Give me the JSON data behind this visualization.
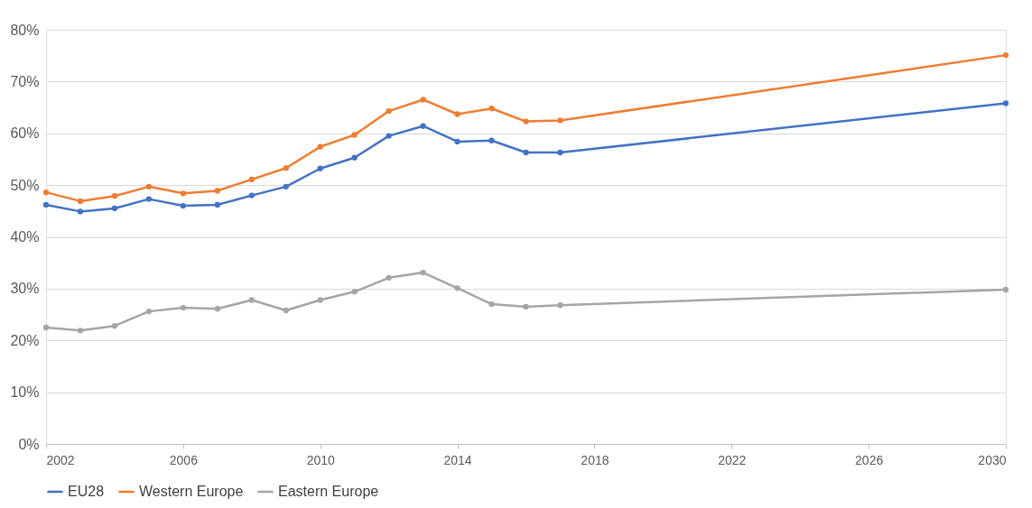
{
  "chart_data": {
    "type": "line",
    "x": [
      2002,
      2003,
      2004,
      2005,
      2006,
      2007,
      2008,
      2009,
      2010,
      2011,
      2012,
      2013,
      2014,
      2015,
      2016,
      2017,
      2030
    ],
    "series": [
      {
        "name": "EU28",
        "color": "#4472c4",
        "values": [
          46.2,
          44.9,
          45.5,
          47.3,
          46.0,
          46.2,
          48.0,
          49.7,
          53.2,
          55.3,
          59.5,
          61.4,
          58.4,
          58.6,
          56.3,
          56.3,
          65.8
        ]
      },
      {
        "name": "Western Europe",
        "color": "#ed7d31",
        "values": [
          48.6,
          46.9,
          47.9,
          49.7,
          48.4,
          48.9,
          51.1,
          53.3,
          57.4,
          59.7,
          64.3,
          66.5,
          63.7,
          64.8,
          62.3,
          62.5,
          75.1
        ]
      },
      {
        "name": "Eastern Europe",
        "color": "#a5a5a5",
        "values": [
          22.5,
          21.9,
          22.8,
          25.6,
          26.3,
          26.1,
          27.8,
          25.8,
          27.8,
          29.4,
          32.1,
          33.1,
          30.1,
          27.0,
          26.5,
          26.8,
          29.8
        ]
      }
    ],
    "xlim": [
      2002,
      2030
    ],
    "xticks": [
      2002,
      2006,
      2010,
      2014,
      2018,
      2022,
      2026,
      2030
    ],
    "ylim": [
      0,
      80
    ],
    "yticks": [
      {
        "value": 0,
        "label": "0%"
      },
      {
        "value": 10,
        "label": "10%"
      },
      {
        "value": 20,
        "label": "20%"
      },
      {
        "value": 30,
        "label": "30%"
      },
      {
        "value": 40,
        "label": "40%"
      },
      {
        "value": 50,
        "label": "50%"
      },
      {
        "value": 60,
        "label": "60%"
      },
      {
        "value": 70,
        "label": "70%"
      },
      {
        "value": 80,
        "label": "80%"
      }
    ],
    "grid": "y",
    "legend": "bottom",
    "marker": "circle",
    "line_style": "solid"
  }
}
